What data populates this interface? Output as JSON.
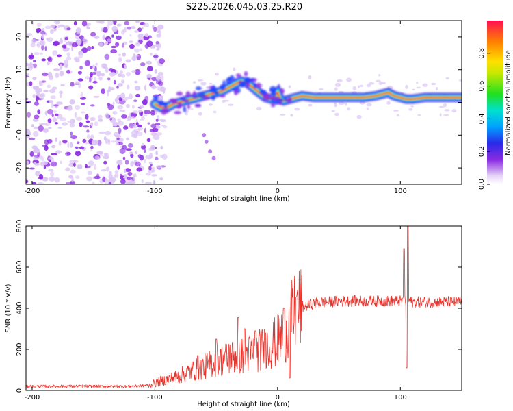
{
  "title": "S225.2026.045.03.25.R20",
  "colors": {
    "snr_line": "#e8342c",
    "ridge_core": "#ff2020",
    "ridge_edge": "#00c8ff",
    "noise_purple": "#8a2be2",
    "noise_light": "#dcc6f5"
  },
  "chart_data": [
    {
      "type": "heatmap",
      "name": "spectrogram",
      "xlabel": "Height of straight line (km)",
      "ylabel": "Frequency (Hz)",
      "xlim": [
        -205,
        150
      ],
      "ylim": [
        -25,
        25
      ],
      "xticks": [
        -200,
        -100,
        0,
        100
      ],
      "xtick_labels": [
        "-200",
        "-100",
        "0",
        "100"
      ],
      "yticks": [
        -20,
        -10,
        0,
        10,
        20
      ],
      "ytick_labels": [
        "-20",
        "-10",
        "0",
        "10",
        "20"
      ],
      "ridge": {
        "x": [
          -100,
          -95,
          -90,
          -85,
          -80,
          -75,
          -70,
          -65,
          -60,
          -55,
          -50,
          -45,
          -40,
          -35,
          -30,
          -25,
          -20,
          -15,
          -10,
          -5,
          0,
          2,
          5,
          10,
          15,
          20,
          30,
          50,
          70,
          80,
          85,
          90,
          95,
          100,
          105,
          110,
          120,
          130,
          140,
          150
        ],
        "y": [
          -0.5,
          -1.5,
          -1.5,
          -0.5,
          0,
          0.5,
          1,
          1.5,
          2,
          2.5,
          3,
          3.5,
          4.5,
          5.5,
          6.5,
          6,
          4.5,
          3,
          1.5,
          1,
          3,
          1,
          0.5,
          1,
          1.5,
          2,
          1.5,
          1.5,
          1.5,
          2,
          2.5,
          3,
          2,
          1.5,
          1,
          1,
          1.5,
          1.5,
          1.5,
          1.5
        ]
      },
      "noise_region_x": [
        -205,
        -100
      ],
      "colorbar": {
        "label": "Normalized spectral amplitude",
        "range": [
          0,
          1
        ],
        "ticks": [
          0.0,
          0.2,
          0.4,
          0.6,
          0.8
        ],
        "tick_labels": [
          "0.0",
          "0.2",
          "0.4",
          "0.6",
          "0.8"
        ]
      }
    },
    {
      "type": "line",
      "name": "snr",
      "xlabel": "Height of straight line (km)",
      "ylabel": "SNR (10 * v/v)",
      "xlim": [
        -205,
        150
      ],
      "ylim": [
        0,
        800
      ],
      "xticks": [
        -200,
        -100,
        0,
        100
      ],
      "xtick_labels": [
        "-200",
        "-100",
        "0",
        "100"
      ],
      "yticks": [
        0,
        200,
        400,
        600,
        800
      ],
      "ytick_labels": [
        "0",
        "200",
        "400",
        "600",
        "800"
      ],
      "baseline": {
        "x": [
          -205,
          -160,
          -120,
          -105,
          -95,
          -80,
          -70,
          -60,
          -50,
          -40,
          -30,
          -20,
          -10,
          0,
          5,
          10,
          15,
          20,
          25,
          30,
          40,
          50,
          60,
          70,
          80,
          90,
          100,
          105,
          110,
          120,
          130,
          140,
          150
        ],
        "y": [
          20,
          20,
          20,
          25,
          45,
          70,
          95,
          115,
          140,
          160,
          170,
          185,
          205,
          240,
          280,
          330,
          380,
          405,
          415,
          425,
          430,
          435,
          435,
          435,
          435,
          435,
          435,
          435,
          430,
          430,
          430,
          430,
          430
        ]
      },
      "spikes": [
        {
          "x": -65,
          "y": 170
        },
        {
          "x": -50,
          "y": 250
        },
        {
          "x": -40,
          "y": 225
        },
        {
          "x": -32,
          "y": 355
        },
        {
          "x": -27,
          "y": 300
        },
        {
          "x": -18,
          "y": 290
        },
        {
          "x": -10,
          "y": 280
        },
        {
          "x": 5,
          "y": 400
        },
        {
          "x": 10,
          "y": 60
        },
        {
          "x": 15,
          "y": 455
        },
        {
          "x": 103,
          "y": 690
        },
        {
          "x": 105,
          "y": 110
        },
        {
          "x": 106,
          "y": 810
        }
      ]
    }
  ]
}
